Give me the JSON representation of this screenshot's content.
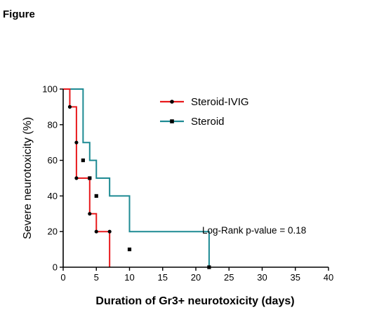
{
  "figure_label": "Figure",
  "chart_data": {
    "type": "line",
    "step": true,
    "xlabel": "Duration of Gr3+ neurotoxicity (days)",
    "ylabel": "Severe neurotoxicity (%)",
    "xlim": [
      0,
      40
    ],
    "ylim": [
      0,
      100
    ],
    "xticks": [
      0,
      5,
      10,
      15,
      20,
      25,
      30,
      35,
      40
    ],
    "yticks": [
      0,
      20,
      40,
      60,
      80,
      100
    ],
    "grid": false,
    "legend_position": "top-right",
    "annotation": "Log-Rank p-value = 0.18",
    "series": [
      {
        "name": "Steroid-IVIG",
        "color": "#e8191c",
        "marker": "circle",
        "x": [
          0,
          1,
          2,
          2,
          4,
          4,
          5,
          7
        ],
        "y": [
          100,
          90,
          70,
          50,
          50,
          30,
          20,
          20
        ],
        "censored_x": [
          1,
          2,
          2,
          4,
          4,
          5,
          7
        ],
        "censored_y": [
          90,
          70,
          50,
          50,
          30,
          20,
          20
        ],
        "end_x": 7
      },
      {
        "name": "Steroid",
        "color": "#1d8a93",
        "marker": "square",
        "x": [
          0,
          2,
          3,
          4,
          5,
          7,
          10,
          22
        ],
        "y": [
          100,
          100,
          70,
          60,
          50,
          40,
          20,
          10
        ],
        "censored_x": [
          3,
          4,
          5,
          10,
          22
        ],
        "censored_y": [
          60,
          50,
          40,
          10,
          0
        ],
        "end_x": 22
      }
    ]
  }
}
